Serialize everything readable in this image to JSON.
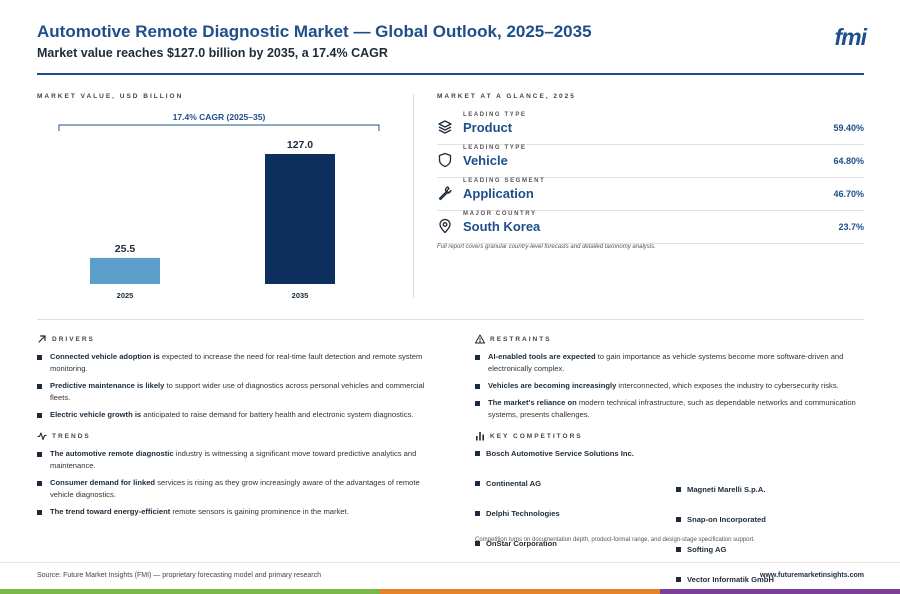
{
  "header": {
    "title": "Automotive Remote Diagnostic Market — Global Outlook, 2025–2035",
    "subtitle": "Market value reaches $127.0 billion by 2035, a 17.4% CAGR",
    "logo": "fmi"
  },
  "market_value": {
    "label": "MARKET VALUE, USD BILLION"
  },
  "chart_data": {
    "type": "bar",
    "categories": [
      "2025",
      "2035"
    ],
    "values": [
      25.5,
      127.0
    ],
    "value_labels": [
      "25.5",
      "127.0"
    ],
    "colors": [
      "#5b9ec9",
      "#0d2f5e"
    ],
    "annotation": "17.4% CAGR (2025–35)",
    "ylim": [
      0,
      127.0
    ],
    "grid": false,
    "title": "",
    "xlabel": "",
    "ylabel": ""
  },
  "glance": {
    "label": "MARKET AT A GLANCE, 2025",
    "items": [
      {
        "category": "LEADING TYPE",
        "name": "Product",
        "value": "59.40%",
        "icon": "layers-icon"
      },
      {
        "category": "LEADING TYPE",
        "name": "Vehicle",
        "value": "64.80%",
        "icon": "shield-icon"
      },
      {
        "category": "LEADING SEGMENT",
        "name": "Application",
        "value": "46.70%",
        "icon": "wrench-icon"
      },
      {
        "category": "MAJOR COUNTRY",
        "name": "South Korea",
        "value": "23.7%",
        "icon": "location-pin-icon"
      }
    ],
    "note": "Full report covers granular country-level forecasts and detailed taxonomy analysis."
  },
  "drivers": {
    "label": "DRIVERS",
    "items": [
      {
        "bold": "Connected vehicle adoption is",
        "rest": " expected to increase the need for real-time fault detection and remote system monitoring."
      },
      {
        "bold": "Predictive maintenance is likely",
        "rest": " to support wider use of diagnostics across personal vehicles and commercial fleets."
      },
      {
        "bold": "Electric vehicle growth is",
        "rest": " anticipated to raise demand for battery health and electronic system diagnostics."
      }
    ]
  },
  "trends": {
    "label": "TRENDS",
    "items": [
      {
        "bold": "The automotive remote diagnostic",
        "rest": " industry is witnessing a significant move toward predictive analytics and maintenance."
      },
      {
        "bold": "Consumer demand for linked",
        "rest": " services is rising as they grow increasingly aware of the advantages of remote vehicle diagnostics."
      },
      {
        "bold": "The trend toward energy-efficient",
        "rest": " remote sensors is gaining prominence in the market."
      }
    ]
  },
  "restraints": {
    "label": "RESTRAINTS",
    "items": [
      {
        "bold": "AI-enabled tools are expected",
        "rest": " to gain importance as vehicle systems become more software-driven and electronically complex."
      },
      {
        "bold": "Vehicles are becoming increasingly",
        "rest": " interconnected, which exposes the industry to cybersecurity risks."
      },
      {
        "bold": "The market's reliance on",
        "rest": " modern technical infrastructure, such as dependable networks and communication systems, presents challenges."
      }
    ]
  },
  "competitors": {
    "label": "KEY COMPETITORS",
    "left": [
      "Bosch Automotive Service Solutions Inc.",
      "Continental AG",
      "Delphi Technologies",
      "OnStar Corporation"
    ],
    "right": [
      "Magneti Marelli S.p.A.",
      "Snap-on Incorporated",
      "Softing AG",
      "Vector Informatik GmbH"
    ],
    "note": "Competition turns on documentation depth, product-format range, and design-stage specification support."
  },
  "footer": {
    "source": "Source: Future Market Insights (FMI) — proprietary forecasting model and primary research",
    "site": "www.futuremarketinsights.com"
  },
  "colors": {
    "brand": "#1f4e8c",
    "bar_2025": "#5b9ec9",
    "bar_2035": "#0d2f5e",
    "bottom_green": "#7ab648",
    "bottom_orange": "#e8822a",
    "bottom_purple": "#7b3f98"
  }
}
